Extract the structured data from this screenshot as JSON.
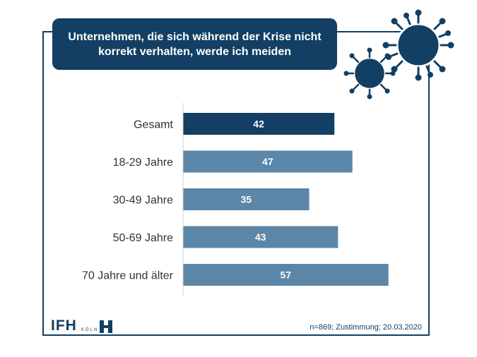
{
  "title": "Unternehmen, die sich während der Krise nicht korrekt verhalten, werde ich meiden",
  "chart_data": {
    "type": "bar",
    "orientation": "horizontal",
    "categories": [
      "Gesamt",
      "18-29 Jahre",
      "30-49 Jahre",
      "50-69 Jahre",
      "70 Jahre und älter"
    ],
    "values": [
      42,
      47,
      35,
      43,
      57
    ],
    "xlim": [
      0,
      80
    ],
    "grid": false,
    "colors": {
      "highlight": "#123f63",
      "bar": "#5b86a8",
      "label_text": "#ffffff",
      "category_text": "#333333"
    }
  },
  "logo": {
    "text": "IFH",
    "subtext": "KÖLN"
  },
  "footnote": "n=869; Zustimmung; 20.03.2020",
  "decoration": {
    "icon": "virus-icon",
    "color": "#123f63"
  }
}
